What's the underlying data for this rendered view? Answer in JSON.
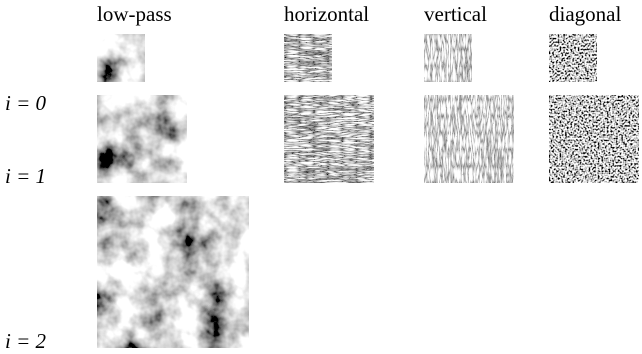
{
  "columns": [
    "low-pass",
    "horizontal",
    "vertical",
    "diagonal"
  ],
  "rows": [
    "i = 0",
    "i = 1",
    "i = 2"
  ]
}
